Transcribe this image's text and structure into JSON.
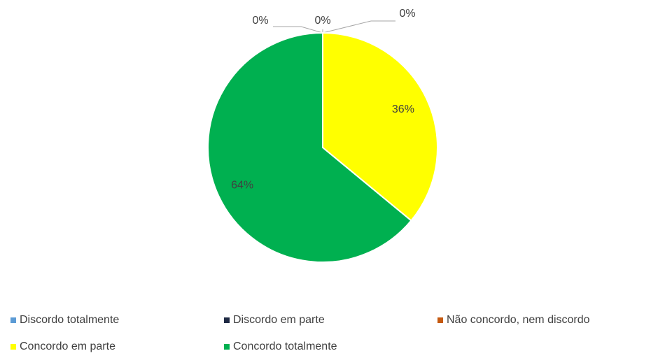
{
  "chart_data": {
    "type": "pie",
    "categories": [
      "Discordo totalmente",
      "Discordo em parte",
      "Não concordo, nem discordo",
      "Concordo em parte",
      "Concordo totalmente"
    ],
    "values": [
      0,
      0,
      0,
      36,
      64
    ],
    "value_labels": [
      "0%",
      "0%",
      "0%",
      "36%",
      "64%"
    ],
    "colors": [
      "#5b9bd5",
      "#1f2a44",
      "#c55a11",
      "#ffff00",
      "#00b050"
    ],
    "legend": "bottom"
  }
}
